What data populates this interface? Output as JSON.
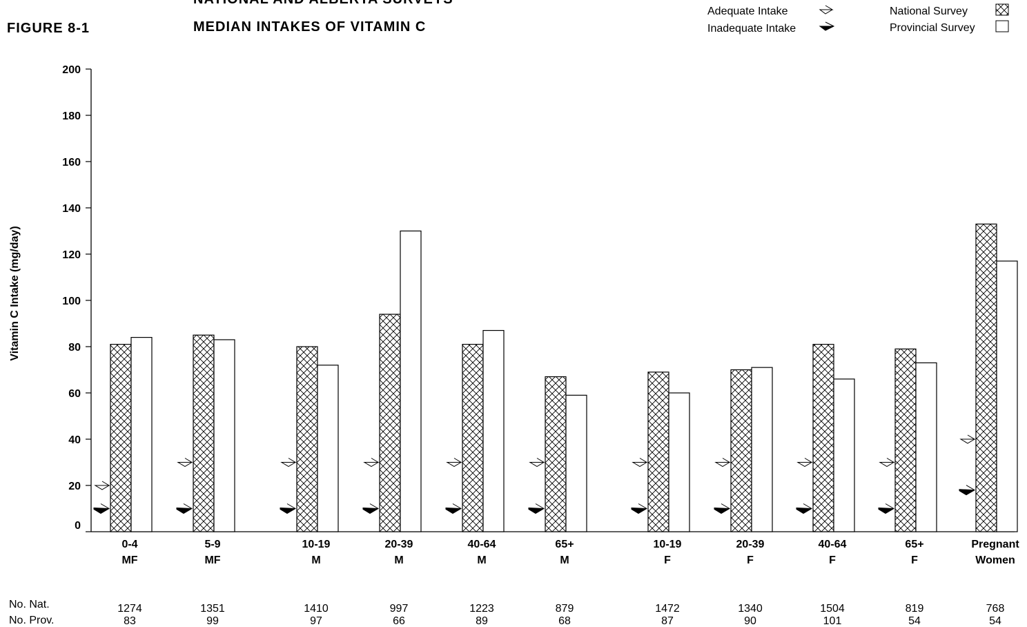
{
  "figure_label": "FIGURE 8-1",
  "title_line1": "NATIONAL AND ALBERTA SURVEYS",
  "title_line2": "MEDIAN INTAKES OF VITAMIN C",
  "legend": {
    "adequate": "Adequate Intake",
    "inadequate": "Inadequate Intake",
    "national": "National Survey",
    "provincial": "Provincial Survey"
  },
  "chart_data": {
    "type": "bar",
    "ylabel": "Vitamin C Intake (mg/day)",
    "ylim": [
      0,
      200
    ],
    "yticks": [
      0,
      20,
      40,
      60,
      80,
      100,
      120,
      140,
      160,
      180,
      200
    ],
    "grid": false,
    "categories": [
      {
        "age": "0-4",
        "sex": "MF"
      },
      {
        "age": "5-9",
        "sex": "MF"
      },
      {
        "age": "10-19",
        "sex": "M"
      },
      {
        "age": "20-39",
        "sex": "M"
      },
      {
        "age": "40-64",
        "sex": "M"
      },
      {
        "age": "65+",
        "sex": "M"
      },
      {
        "age": "10-19",
        "sex": "F"
      },
      {
        "age": "20-39",
        "sex": "F"
      },
      {
        "age": "40-64",
        "sex": "F"
      },
      {
        "age": "65+",
        "sex": "F"
      },
      {
        "age": "Pregnant",
        "sex": "Women"
      }
    ],
    "series": [
      {
        "name": "National Survey",
        "values": [
          81,
          85,
          80,
          94,
          81,
          67,
          69,
          70,
          81,
          79,
          133
        ]
      },
      {
        "name": "Provincial Survey",
        "values": [
          84,
          83,
          72,
          130,
          87,
          59,
          60,
          71,
          66,
          73,
          117
        ]
      }
    ],
    "adequate_intake": [
      20,
      30,
      30,
      30,
      30,
      30,
      30,
      30,
      30,
      30,
      40
    ],
    "inadequate_intake": [
      10,
      10,
      10,
      10,
      10,
      10,
      10,
      10,
      10,
      10,
      18
    ],
    "sample_sizes": {
      "nat_label": "No. Nat.",
      "prov_label": "No. Prov.",
      "national": [
        "1274",
        "1351",
        "1410",
        "997",
        "1223",
        "879",
        "1472",
        "1340",
        "1504",
        "819",
        "768"
      ],
      "provincial": [
        "83",
        "99",
        "97",
        "66",
        "89",
        "68",
        "87",
        "90",
        "101",
        "54",
        "54"
      ]
    }
  }
}
